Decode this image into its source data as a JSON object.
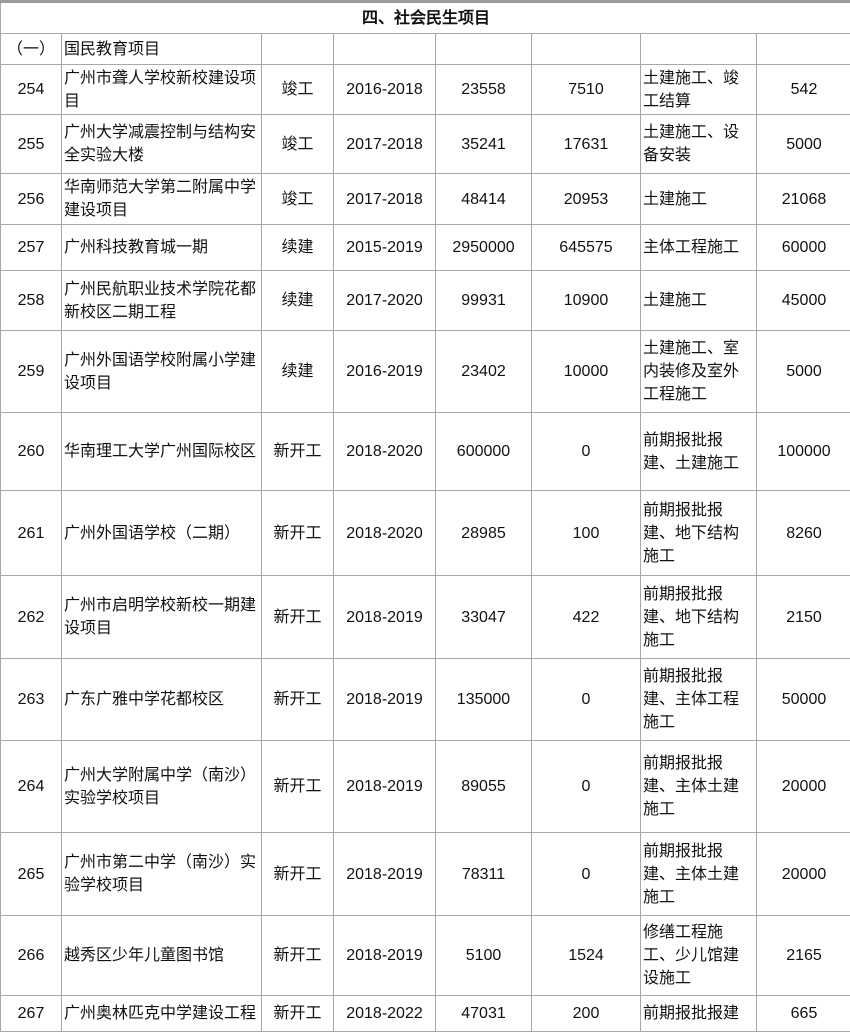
{
  "section_title": "四、社会民生项目",
  "subsection": {
    "index": "（一）",
    "name": "国民教育项目"
  },
  "rows": [
    {
      "no": "254",
      "name": "广州市聋人学校新校建设项目",
      "status": "竣工",
      "period": "2016-2018",
      "total": "23558",
      "done": "7510",
      "phase": "土建施工、竣工结算",
      "plan": "542"
    },
    {
      "no": "255",
      "name": "广州大学减震控制与结构安全实验大楼",
      "status": "竣工",
      "period": "2017-2018",
      "total": "35241",
      "done": "17631",
      "phase": "土建施工、设备安装",
      "plan": "5000"
    },
    {
      "no": "256",
      "name": "华南师范大学第二附属中学建设项目",
      "status": "竣工",
      "period": "2017-2018",
      "total": "48414",
      "done": "20953",
      "phase": "土建施工",
      "plan": "21068"
    },
    {
      "no": "257",
      "name": "广州科技教育城一期",
      "status": "续建",
      "period": "2015-2019",
      "total": "2950000",
      "done": "645575",
      "phase": "主体工程施工",
      "plan": "60000"
    },
    {
      "no": "258",
      "name": "广州民航职业技术学院花都新校区二期工程",
      "status": "续建",
      "period": "2017-2020",
      "total": "99931",
      "done": "10900",
      "phase": "土建施工",
      "plan": "45000"
    },
    {
      "no": "259",
      "name": "广州外国语学校附属小学建设项目",
      "status": "续建",
      "period": "2016-2019",
      "total": "23402",
      "done": "10000",
      "phase": "土建施工、室内装修及室外工程施工",
      "plan": "5000"
    },
    {
      "no": "260",
      "name": "华南理工大学广州国际校区",
      "status": "新开工",
      "period": "2018-2020",
      "total": "600000",
      "done": "0",
      "phase": "前期报批报建、土建施工",
      "plan": "100000"
    },
    {
      "no": "261",
      "name": "广州外国语学校（二期）",
      "status": "新开工",
      "period": "2018-2020",
      "total": "28985",
      "done": "100",
      "phase": "前期报批报建、地下结构施工",
      "plan": "8260"
    },
    {
      "no": "262",
      "name": "广州市启明学校新校一期建设项目",
      "status": "新开工",
      "period": "2018-2019",
      "total": "33047",
      "done": "422",
      "phase": "前期报批报建、地下结构施工",
      "plan": "2150"
    },
    {
      "no": "263",
      "name": "广东广雅中学花都校区",
      "status": "新开工",
      "period": "2018-2019",
      "total": "135000",
      "done": "0",
      "phase": "前期报批报建、主体工程施工",
      "plan": "50000"
    },
    {
      "no": "264",
      "name": "广州大学附属中学（南沙）实验学校项目",
      "status": "新开工",
      "period": "2018-2019",
      "total": "89055",
      "done": "0",
      "phase": "前期报批报建、主体土建施工",
      "plan": "20000"
    },
    {
      "no": "265",
      "name": "广州市第二中学（南沙）实验学校项目",
      "status": "新开工",
      "period": "2018-2019",
      "total": "78311",
      "done": "0",
      "phase": "前期报批报建、主体土建施工",
      "plan": "20000"
    },
    {
      "no": "266",
      "name": "越秀区少年儿童图书馆",
      "status": "新开工",
      "period": "2018-2019",
      "total": "5100",
      "done": "1524",
      "phase": "修缮工程施工、少儿馆建设施工",
      "plan": "2165"
    },
    {
      "no": "267",
      "name": "广州奥林匹克中学建设工程",
      "status": "新开工",
      "period": "2018-2022",
      "total": "47031",
      "done": "200",
      "phase": "前期报批报建",
      "plan": "665"
    }
  ]
}
